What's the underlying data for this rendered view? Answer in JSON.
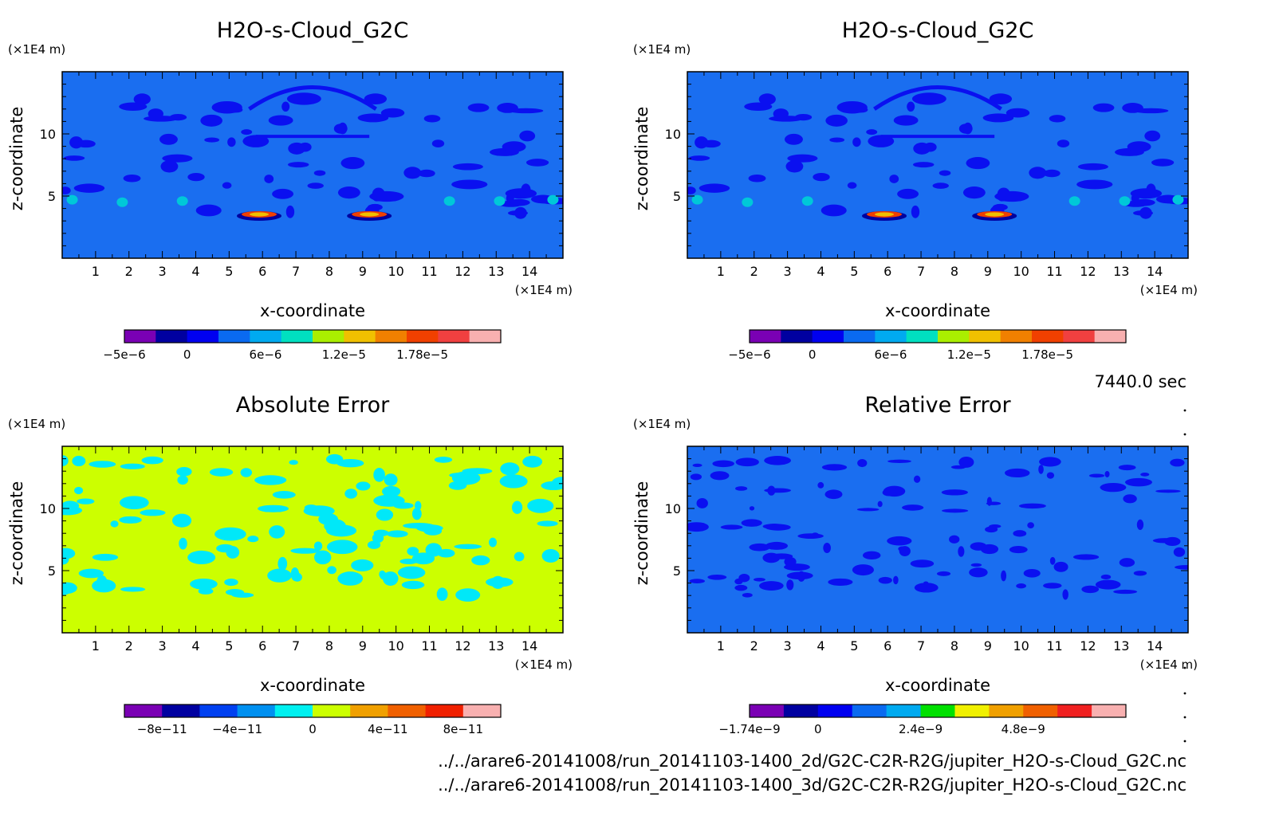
{
  "timestamp": "7440.0 sec",
  "file_paths": [
    "../../arare6-20141008/run_20141103-1400_2d/G2C-C2R-R2G/jupiter_H2O-s-Cloud_G2C.nc",
    "../../arare6-20141008/run_20141103-1400_3d/G2C-C2R-R2G/jupiter_H2O-s-Cloud_G2C.nc"
  ],
  "colors": {
    "background_blue": "#1a6ef0",
    "dark_blue": "#0a10f0",
    "yellow_green": "#ccff00",
    "cyan": "#00e8f8"
  },
  "chart_data": [
    {
      "type": "heatmap",
      "title": "H2O-s-Cloud_G2C",
      "xlabel": "x-coordinate",
      "ylabel": "z-coordinate",
      "x_unit": "(×1E4 m)",
      "y_unit": "(×1E4 m)",
      "xlim": [
        0,
        15
      ],
      "ylim": [
        0,
        15
      ],
      "xticks": [
        1,
        2,
        3,
        4,
        5,
        6,
        7,
        8,
        9,
        10,
        11,
        12,
        13,
        14
      ],
      "yticks": [
        5,
        10
      ],
      "background_color": "#1a6ef0",
      "colorbar": {
        "colors": [
          "#7a00b4",
          "#0000a0",
          "#0000f0",
          "#0a6af0",
          "#00aaf0",
          "#00e0c0",
          "#aaee00",
          "#f0c000",
          "#f08000",
          "#f04000",
          "#f04040",
          "#f8b0b0"
        ],
        "labels": [
          "−5e−6",
          "0",
          "6e−6",
          "1.2e−5",
          "1.78e−5"
        ],
        "label_positions": [
          0,
          2,
          4.5,
          7,
          9.5
        ]
      }
    },
    {
      "type": "heatmap",
      "title": "H2O-s-Cloud_G2C",
      "xlabel": "x-coordinate",
      "ylabel": "z-coordinate",
      "x_unit": "(×1E4 m)",
      "y_unit": "(×1E4 m)",
      "xlim": [
        0,
        15
      ],
      "ylim": [
        0,
        15
      ],
      "xticks": [
        1,
        2,
        3,
        4,
        5,
        6,
        7,
        8,
        9,
        10,
        11,
        12,
        13,
        14
      ],
      "yticks": [
        5,
        10
      ],
      "background_color": "#1a6ef0",
      "colorbar": {
        "colors": [
          "#7a00b4",
          "#0000a0",
          "#0000f0",
          "#0a6af0",
          "#00aaf0",
          "#00e0c0",
          "#aaee00",
          "#f0c000",
          "#f08000",
          "#f04000",
          "#f04040",
          "#f8b0b0"
        ],
        "labels": [
          "−5e−6",
          "0",
          "6e−6",
          "1.2e−5",
          "1.78e−5"
        ],
        "label_positions": [
          0,
          2,
          4.5,
          7,
          9.5
        ]
      }
    },
    {
      "type": "heatmap",
      "title": "Absolute Error",
      "xlabel": "x-coordinate",
      "ylabel": "z-coordinate",
      "x_unit": "(×1E4 m)",
      "y_unit": "(×1E4 m)",
      "xlim": [
        0,
        15
      ],
      "ylim": [
        0,
        15
      ],
      "xticks": [
        1,
        2,
        3,
        4,
        5,
        6,
        7,
        8,
        9,
        10,
        11,
        12,
        13,
        14
      ],
      "yticks": [
        5,
        10
      ],
      "background_color": "#ccff00",
      "colorbar": {
        "colors": [
          "#7a00b4",
          "#0000a0",
          "#0040f0",
          "#0090f0",
          "#00f0f0",
          "#ccff00",
          "#f0a000",
          "#f06000",
          "#f02000",
          "#f8b0b0"
        ],
        "labels": [
          "−8e−11",
          "−4e−11",
          "0",
          "4e−11",
          "8e−11"
        ],
        "label_positions": [
          1,
          3,
          5,
          7,
          9
        ]
      }
    },
    {
      "type": "heatmap",
      "title": "Relative Error",
      "xlabel": "x-coordinate",
      "ylabel": "z-coordinate",
      "x_unit": "(×1E4 m)",
      "y_unit": "(×1E4 m)",
      "xlim": [
        0,
        15
      ],
      "ylim": [
        0,
        15
      ],
      "xticks": [
        1,
        2,
        3,
        4,
        5,
        6,
        7,
        8,
        9,
        10,
        11,
        12,
        13,
        14
      ],
      "yticks": [
        5,
        10
      ],
      "background_color": "#1a6ef0",
      "colorbar": {
        "colors": [
          "#7a00b4",
          "#0000a0",
          "#0000f0",
          "#0a6af0",
          "#00aaf0",
          "#00e000",
          "#f0f000",
          "#f0a000",
          "#f06000",
          "#f02020",
          "#f8b0b0"
        ],
        "labels": [
          "−1.74e−9",
          "0",
          "2.4e−9",
          "4.8e−9"
        ],
        "label_positions": [
          0,
          2,
          5,
          8
        ]
      }
    }
  ]
}
